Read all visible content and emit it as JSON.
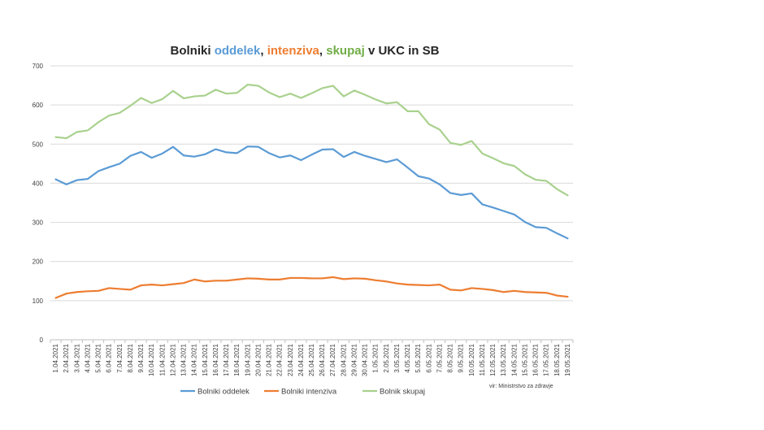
{
  "chart_data": {
    "type": "line",
    "title_parts": [
      {
        "text": "Bolniki ",
        "color": "#262626"
      },
      {
        "text": "oddelek",
        "color": "#5B9BD5"
      },
      {
        "text": ", ",
        "color": "#262626"
      },
      {
        "text": "intenziva",
        "color": "#ED7D31"
      },
      {
        "text": ", ",
        "color": "#262626"
      },
      {
        "text": "skupaj",
        "color": "#70AD47"
      },
      {
        "text": " v UKC in SB",
        "color": "#262626"
      }
    ],
    "source": "vir: Ministrstvo za zdravje",
    "ylim": [
      0,
      700
    ],
    "yticks": [
      0,
      100,
      200,
      300,
      400,
      500,
      600,
      700
    ],
    "grid": true,
    "legend_position": "bottom",
    "x": [
      "1.04.2021",
      "2.04.2021",
      "3.04.2021",
      "4.04.2021",
      "5.04.2021",
      "6.04.2021",
      "7.04.2021",
      "8.04.2021",
      "9.04.2021",
      "10.04.2021",
      "11.04.2021",
      "12.04.2021",
      "13.04.2021",
      "14.04.2021",
      "15.04.2021",
      "16.04.2021",
      "17.04.2021",
      "18.04.2021",
      "19.04.2021",
      "20.04.2021",
      "21.04.2021",
      "22.04.2021",
      "23.04.2021",
      "24.04.2021",
      "25.04.2021",
      "26.04.2021",
      "27.04.2021",
      "28.04.2021",
      "29.04.2021",
      "30.04.2021",
      "1.05.2021",
      "2.05.2021",
      "3.05.2021",
      "4.05.2021",
      "5.05.2021",
      "6.05.2021",
      "7.05.2021",
      "8.05.2021",
      "9.05.2021",
      "10.05.2021",
      "11.05.2021",
      "12.05.2021",
      "13.05.2021",
      "14.05.2021",
      "15.05.2021",
      "16.05.2021",
      "17.05.2021",
      "18.05.2021",
      "19.05.2021"
    ],
    "series": [
      {
        "name": "Bolniki oddelek",
        "color": "#5B9BD5",
        "values": [
          410,
          397,
          408,
          411,
          431,
          441,
          450,
          470,
          480,
          465,
          476,
          493,
          471,
          468,
          474,
          487,
          479,
          477,
          494,
          493,
          477,
          466,
          471,
          459,
          473,
          486,
          487,
          467,
          480,
          470,
          462,
          454,
          461,
          440,
          418,
          412,
          397,
          375,
          370,
          374,
          346,
          338,
          329,
          320,
          301,
          288,
          286,
          272,
          259
        ]
      },
      {
        "name": "Bolniki intenziva",
        "color": "#ED7D31",
        "values": [
          107,
          118,
          122,
          124,
          125,
          132,
          130,
          128,
          139,
          141,
          139,
          142,
          145,
          154,
          149,
          151,
          151,
          154,
          157,
          156,
          154,
          154,
          158,
          158,
          157,
          157,
          160,
          155,
          157,
          156,
          152,
          149,
          144,
          141,
          140,
          139,
          141,
          128,
          126,
          132,
          130,
          127,
          122,
          125,
          122,
          121,
          120,
          113,
          110
        ]
      },
      {
        "name": "Bolnik skupaj",
        "color": "#A9D18E",
        "values": [
          518,
          515,
          531,
          535,
          556,
          573,
          580,
          598,
          618,
          605,
          615,
          636,
          617,
          622,
          624,
          639,
          629,
          631,
          652,
          649,
          632,
          620,
          629,
          618,
          630,
          643,
          649,
          622,
          637,
          626,
          614,
          604,
          607,
          584,
          584,
          551,
          537,
          503,
          498,
          508,
          476,
          464,
          451,
          444,
          423,
          409,
          406,
          385,
          369
        ]
      }
    ]
  }
}
